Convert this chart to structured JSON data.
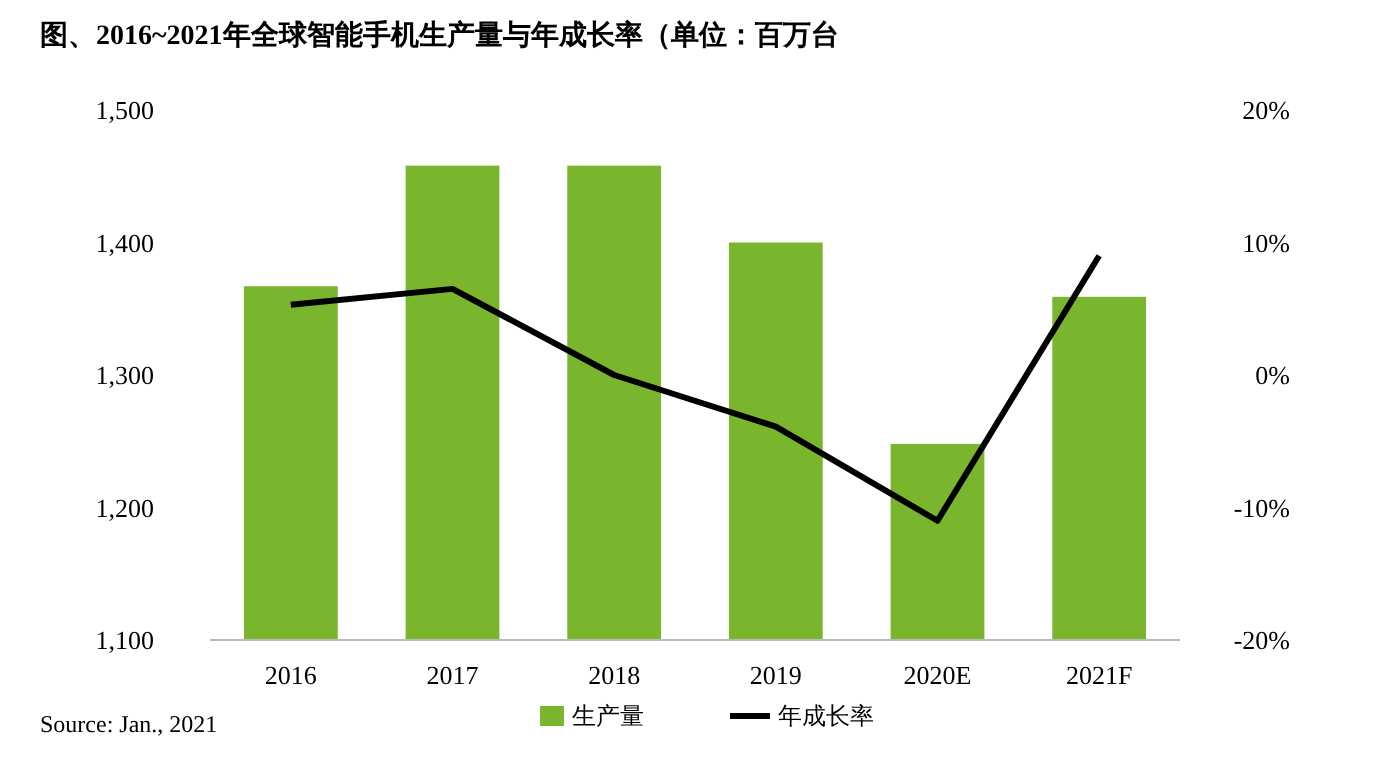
{
  "chart_data": {
    "type": "bar",
    "title": "图、2016~2021年全球智能手机生产量与年成长率（单位：百万台",
    "categories": [
      "2016",
      "2017",
      "2018",
      "2019",
      "2020E",
      "2021F"
    ],
    "series": [
      {
        "name": "生产量",
        "color": "#7ab52e",
        "values": [
          1367,
          1458,
          1458,
          1400,
          1248,
          1359
        ]
      },
      {
        "name": "年成长率",
        "type": "line",
        "axis": "y2",
        "color": "#000000",
        "values": [
          5.3,
          6.5,
          0.0,
          -3.9,
          -11.0,
          9.0
        ]
      }
    ],
    "ylim": [
      1100,
      1500
    ],
    "yticks": [
      {
        "value": 1100,
        "label": "1,100"
      },
      {
        "value": 1200,
        "label": "1,200"
      },
      {
        "value": 1300,
        "label": "1,300"
      },
      {
        "value": 1400,
        "label": "1,400"
      },
      {
        "value": 1500,
        "label": "1,500"
      }
    ],
    "y2lim": [
      -20,
      20
    ],
    "y2ticks": [
      {
        "value": -20,
        "label": "-20%"
      },
      {
        "value": -10,
        "label": "-10%"
      },
      {
        "value": 0,
        "label": "0%"
      },
      {
        "value": 10,
        "label": "10%"
      },
      {
        "value": 20,
        "label": "20%"
      }
    ],
    "legend": "bottom",
    "grid": false,
    "marker": "none",
    "line_style": "solid",
    "annotations": [
      "Source: Jan., 2021"
    ]
  }
}
